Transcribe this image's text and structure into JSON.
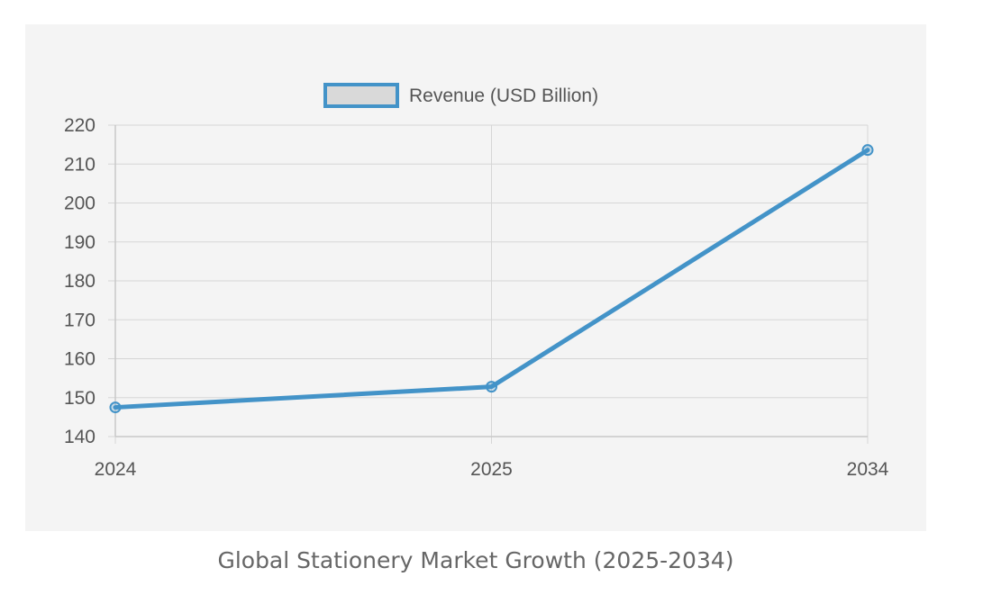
{
  "caption": "Global Stationery Market Growth (2025-2034)",
  "colors": {
    "line": "#4393c8",
    "legend_fill": "#d9d9d9",
    "grid": "#d6d6d6",
    "axis": "#c8c8c8",
    "panel_bg": "#f4f4f4"
  },
  "chart_data": {
    "type": "line",
    "categories": [
      "2024",
      "2025",
      "2034"
    ],
    "series": [
      {
        "name": "Revenue (USD Billion)",
        "values": [
          147.5,
          152.8,
          213.6
        ]
      }
    ],
    "ylim": [
      140,
      220
    ],
    "yticks": [
      140,
      150,
      160,
      170,
      180,
      190,
      200,
      210,
      220
    ],
    "grid": true,
    "legend_position": "top",
    "title": "",
    "xlabel": "",
    "ylabel": ""
  }
}
